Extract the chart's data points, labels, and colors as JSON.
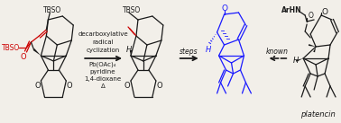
{
  "background_color": "#f2efe9",
  "arrow1_text_lines": [
    "decarboxylative",
    "radical",
    "cyclization"
  ],
  "arrow1_subtext_lines": [
    "Pb(OAc)₄",
    "pyridine",
    "1,4-dioxane",
    "Δ"
  ],
  "arrow2_text": "steps",
  "arrow3_text": "known",
  "label_platencin": "platencin",
  "red_color": "#cc0000",
  "blue_color": "#1a1aff",
  "black_color": "#1a1a1a",
  "text_color": "#1a1a1a",
  "figsize": [
    3.78,
    1.37
  ],
  "dpi": 100
}
